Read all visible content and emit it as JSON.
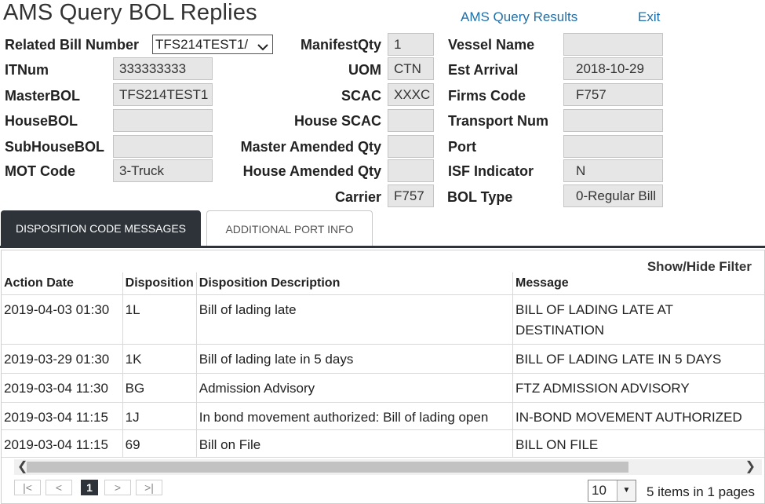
{
  "header": {
    "title": "AMS Query BOL Replies",
    "results_link": "AMS Query Results",
    "exit_link": "Exit"
  },
  "form": {
    "related_bill_label": "Related Bill Number",
    "related_bill_value": "TFS214TEST1/",
    "itnum_label": "ITNum",
    "itnum_value": "333333333",
    "masterbol_label": "MasterBOL",
    "masterbol_value": "TFS214TEST1",
    "housebol_label": "HouseBOL",
    "housebol_value": "",
    "subhousebol_label": "SubHouseBOL",
    "subhousebol_value": "",
    "motcode_label": "MOT Code",
    "motcode_value": "3-Truck",
    "manifestqty_label": "ManifestQty",
    "manifestqty_value": "1",
    "uom_label": "UOM",
    "uom_value": "CTN",
    "scac_label": "SCAC",
    "scac_value": "XXXC",
    "housescac_label": "House SCAC",
    "housescac_value": "",
    "masteramended_label": "Master Amended Qty",
    "masteramended_value": "",
    "houseamended_label": "House Amended Qty",
    "houseamended_value": "",
    "carrier_label": "Carrier",
    "carrier_value": "F757",
    "vessel_label": "Vessel Name",
    "vessel_value": "",
    "estarrival_label": "Est Arrival",
    "estarrival_value": "2018-10-29",
    "firms_label": "Firms Code",
    "firms_value": "F757",
    "transport_label": "Transport Num",
    "transport_value": "",
    "port_label": "Port",
    "port_value": "",
    "isf_label": "ISF Indicator",
    "isf_value": "N",
    "boltype_label": "BOL Type",
    "boltype_value": "0-Regular Bill"
  },
  "tabs": {
    "active": "DISPOSITION CODE MESSAGES",
    "inactive": "ADDITIONAL PORT INFO"
  },
  "grid": {
    "show_hide_filter": "Show/Hide Filter",
    "columns": [
      "Action Date",
      "Disposition",
      "Disposition Description",
      "Message"
    ],
    "rows": [
      [
        "2019-04-03 01:30",
        "1L",
        "Bill of lading late",
        "BILL OF LADING LATE AT DESTINATION"
      ],
      [
        "2019-03-29 01:30",
        "1K",
        "Bill of lading late in 5 days",
        "BILL OF LADING LATE IN 5 DAYS"
      ],
      [
        "2019-03-04 11:30",
        "BG",
        "Admission Advisory",
        "FTZ ADMISSION ADVISORY"
      ],
      [
        "2019-03-04 11:15",
        "1J",
        "In bond movement authorized: Bill of lading open",
        "IN-BOND MOVEMENT AUTHORIZED"
      ],
      [
        "2019-03-04 11:15",
        "69",
        "Bill on File",
        "BILL ON FILE"
      ]
    ]
  },
  "pager": {
    "current_page": "1",
    "page_size": "10",
    "info": "5 items in 1 pages"
  }
}
